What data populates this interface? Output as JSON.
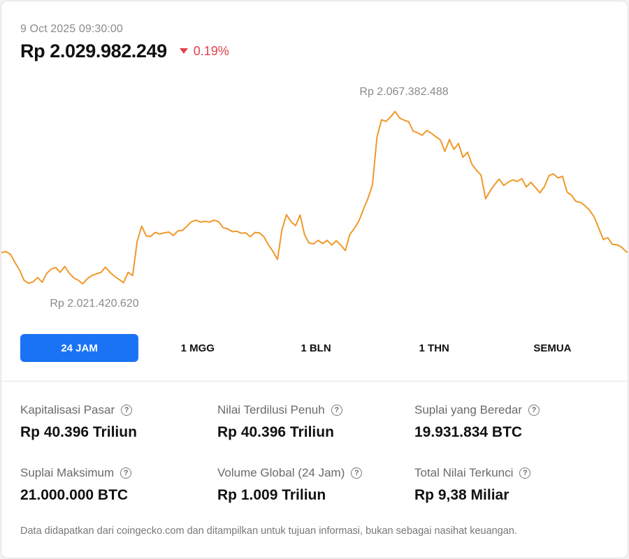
{
  "header": {
    "timestamp": "9 Oct 2025 09:30:00",
    "price": "Rp 2.029.982.249",
    "change": "0.19%",
    "change_direction": "down",
    "change_color": "#e0424b"
  },
  "chart_data": {
    "type": "line",
    "title": "",
    "line_color": "#f0982a",
    "grid": false,
    "annotations": {
      "max_label": "Rp 2.067.382.488",
      "min_label": "Rp 2.021.420.620"
    },
    "ymax": 2067382488,
    "ymin": 2021420620,
    "values": [
      2030000000,
      2030250000,
      2029600000,
      2027500000,
      2025600000,
      2023000000,
      2022200000,
      2022600000,
      2023700000,
      2022500000,
      2024700000,
      2025800000,
      2026200000,
      2025000000,
      2026500000,
      2024800000,
      2023600000,
      2023000000,
      2022100000,
      2023400000,
      2024200000,
      2024600000,
      2025000000,
      2026300000,
      2025000000,
      2024000000,
      2023200000,
      2022400000,
      2025000000,
      2024200000,
      2032800000,
      2036700000,
      2034200000,
      2034100000,
      2035100000,
      2034700000,
      2035000000,
      2035200000,
      2034300000,
      2035500000,
      2035600000,
      2036700000,
      2037800000,
      2038200000,
      2037700000,
      2037900000,
      2037700000,
      2038200000,
      2037800000,
      2036300000,
      2036000000,
      2035300000,
      2035400000,
      2034900000,
      2035000000,
      2034000000,
      2035100000,
      2035000000,
      2034000000,
      2032000000,
      2030300000,
      2028300000,
      2035700000,
      2039600000,
      2037800000,
      2036800000,
      2039500000,
      2034500000,
      2032400000,
      2032200000,
      2033100000,
      2032300000,
      2033100000,
      2031900000,
      2033000000,
      2031900000,
      2030500000,
      2034600000,
      2036100000,
      2038000000,
      2040900000,
      2043700000,
      2047100000,
      2059200000,
      2063600000,
      2063200000,
      2064300000,
      2065700000,
      2064000000,
      2063500000,
      2063100000,
      2060700000,
      2060300000,
      2059700000,
      2060900000,
      2060200000,
      2059300000,
      2058500000,
      2055600000,
      2058600000,
      2056100000,
      2057600000,
      2054100000,
      2055400000,
      2052300000,
      2050800000,
      2049600000,
      2043600000,
      2045600000,
      2047200000,
      2048600000,
      2047000000,
      2047800000,
      2048400000,
      2048000000,
      2048700000,
      2046600000,
      2047800000,
      2046500000,
      2045100000,
      2046700000,
      2049500000,
      2049900000,
      2048900000,
      2049300000,
      2045300000,
      2044500000,
      2042900000,
      2042700000,
      2041800000,
      2040700000,
      2039000000,
      2036200000,
      2033300000,
      2033800000,
      2032100000,
      2032000000,
      2031400000,
      2030300000,
      2029700000
    ]
  },
  "tabs": [
    {
      "label": "24 JAM",
      "active": true
    },
    {
      "label": "1 MGG",
      "active": false
    },
    {
      "label": "1 BLN",
      "active": false
    },
    {
      "label": "1 THN",
      "active": false
    },
    {
      "label": "SEMUA",
      "active": false
    }
  ],
  "stats": [
    {
      "label": "Kapitalisasi Pasar",
      "value": "Rp 40.396 Triliun"
    },
    {
      "label": "Nilai Terdilusi Penuh",
      "value": "Rp 40.396 Triliun"
    },
    {
      "label": "Suplai yang Beredar",
      "value": "19.931.834 BTC"
    },
    {
      "label": "Suplai Maksimum",
      "value": "21.000.000 BTC"
    },
    {
      "label": "Volume Global (24 Jam)",
      "value": "Rp 1.009 Triliun"
    },
    {
      "label": "Total Nilai Terkunci",
      "value": "Rp 9,38 Miliar"
    }
  ],
  "footer": {
    "disclaimer": "Data didapatkan dari coingecko.com dan ditampilkan untuk tujuan informasi, bukan sebagai nasihat keuangan."
  },
  "icons": {
    "change_indicator": "triangle-down-icon",
    "info": "question-circle-icon"
  }
}
